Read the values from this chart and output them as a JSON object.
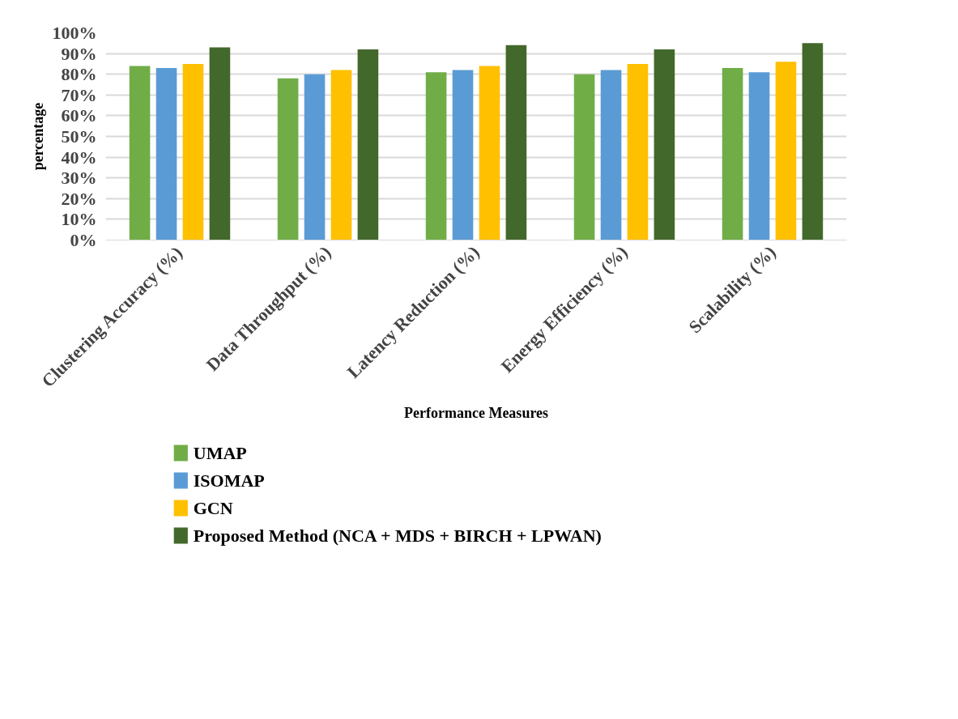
{
  "chart_data": {
    "type": "bar",
    "xlabel": "Performance Measures",
    "ylabel": "percentage",
    "categories": [
      "Clustering Accuracy (%)",
      "Data Throughput (%)",
      "Latency Reduction (%)",
      "Energy Efficiency (%)",
      "Scalability (%)"
    ],
    "series": [
      {
        "name": "UMAP",
        "color": "#70ad47",
        "values": [
          84,
          78,
          81,
          80,
          83
        ]
      },
      {
        "name": "ISOMAP",
        "color": "#5b9bd5",
        "values": [
          83,
          80,
          82,
          82,
          81
        ]
      },
      {
        "name": "GCN",
        "color": "#ffc000",
        "values": [
          85,
          82,
          84,
          85,
          86
        ]
      },
      {
        "name": "Proposed Method (NCA + MDS + BIRCH + LPWAN)",
        "color": "#43682b",
        "values": [
          93,
          92,
          94,
          92,
          95
        ]
      }
    ],
    "ylim": [
      0,
      100
    ],
    "yticks": [
      {
        "value": 0,
        "label": "0%"
      },
      {
        "value": 10,
        "label": "10%"
      },
      {
        "value": 20,
        "label": "20%"
      },
      {
        "value": 30,
        "label": "30%"
      },
      {
        "value": 40,
        "label": "40%"
      },
      {
        "value": 50,
        "label": "50%"
      },
      {
        "value": 60,
        "label": "60%"
      },
      {
        "value": 70,
        "label": "70%"
      },
      {
        "value": 80,
        "label": "80%"
      },
      {
        "value": 90,
        "label": "90%"
      },
      {
        "value": 100,
        "label": "100%"
      }
    ],
    "grid": "y",
    "legend": "bottom"
  }
}
